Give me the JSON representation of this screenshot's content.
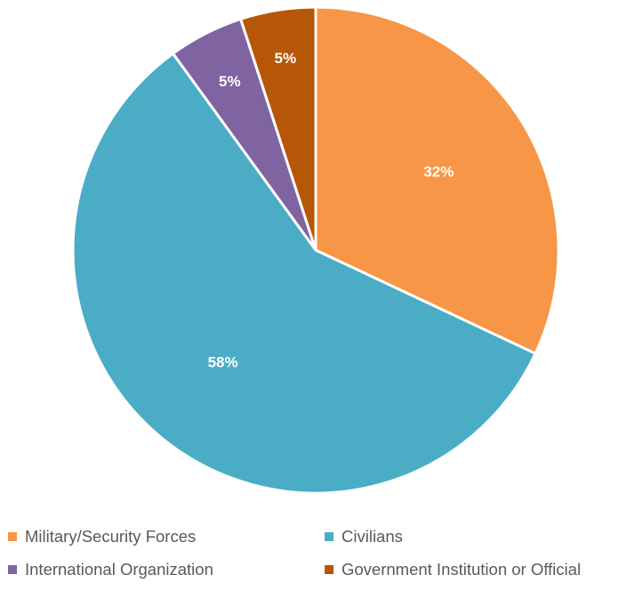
{
  "chart_data": {
    "type": "pie",
    "title": "",
    "slices": [
      {
        "label": "Military/Security Forces",
        "value": 32,
        "display": "32%",
        "color": "#F79646"
      },
      {
        "label": "Civilians",
        "value": 58,
        "display": "58%",
        "color": "#4BACC6"
      },
      {
        "label": "International Organization",
        "value": 5,
        "display": "5%",
        "color": "#8064A2"
      },
      {
        "label": "Government Institution or Official",
        "value": 5,
        "display": "5%",
        "color": "#B65708"
      }
    ],
    "legend_position": "bottom"
  }
}
